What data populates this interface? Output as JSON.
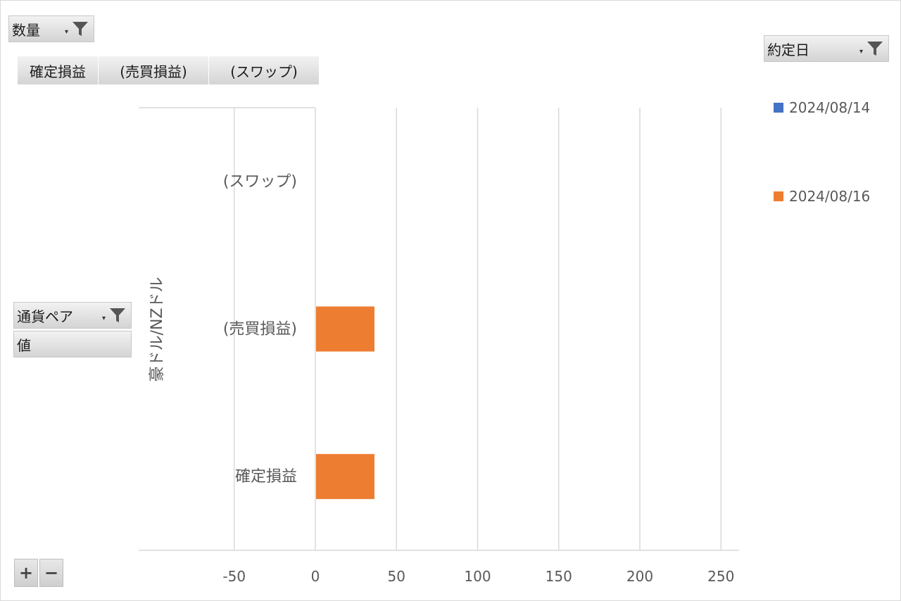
{
  "filters": {
    "value_field": "数量",
    "legend_field": "約定日",
    "axis_field": "通貨ペア",
    "values_label": "値"
  },
  "category_fields": [
    "確定損益",
    "(売買損益)",
    "(スワップ)"
  ],
  "buttons": {
    "expand": "+",
    "collapse": "−"
  },
  "colors": {
    "series1": "#4472c4",
    "series2": "#ed7d31",
    "grid": "#d9d9d9",
    "axis": "#bfbfbf"
  },
  "chart_data": {
    "type": "bar",
    "orientation": "horizontal",
    "group_label": "豪ドル/NZドル",
    "categories": [
      "(スワップ)",
      "(売買損益)",
      "確定損益"
    ],
    "series": [
      {
        "name": "2024/08/14",
        "values": [
          0,
          0,
          0
        ]
      },
      {
        "name": "2024/08/16",
        "values": [
          0,
          36,
          36
        ]
      }
    ],
    "xlim": [
      -100,
      275
    ],
    "xticks": [
      -50,
      0,
      50,
      100,
      150,
      200,
      250
    ],
    "grid": true,
    "legend": "right"
  }
}
